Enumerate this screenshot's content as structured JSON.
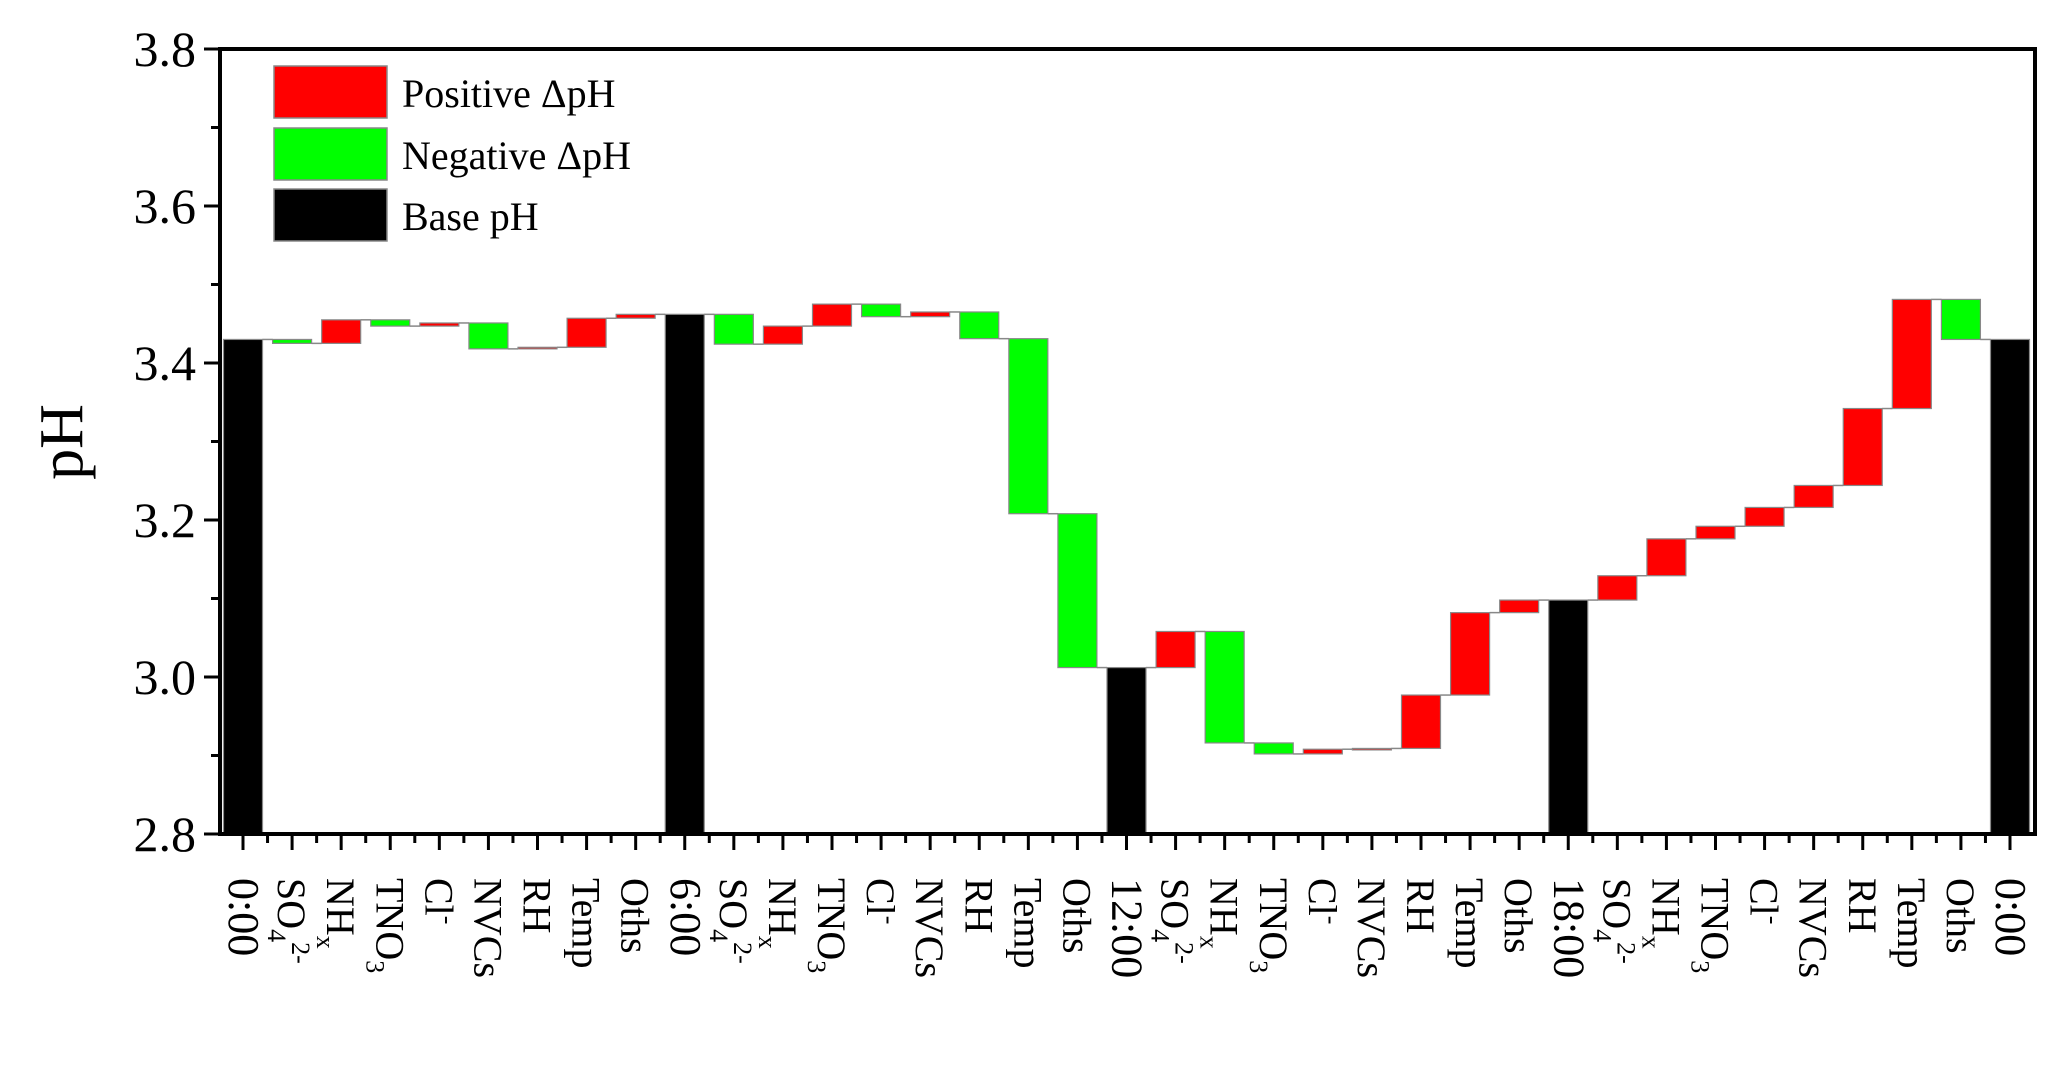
{
  "chart_data": {
    "type": "waterfall",
    "title": "",
    "xlabel": "",
    "ylabel": "pH",
    "ylim": [
      2.8,
      3.8
    ],
    "yticks": [
      "2.8",
      "3.0",
      "3.2",
      "3.4",
      "3.6",
      "3.8"
    ],
    "legend": {
      "placement": "top-left",
      "entries": [
        {
          "label": "Positive ΔpH",
          "color": "#ff0000"
        },
        {
          "label": "Negative ΔpH",
          "color": "#00ff00"
        },
        {
          "label": "Base pH",
          "color": "#000000"
        }
      ]
    },
    "colors": {
      "positive": "#ff0000",
      "negative": "#00ff00",
      "base": "#000000",
      "base_label": "#ff0000",
      "connector": "#888888"
    },
    "categories": [
      {
        "label": "0:00",
        "type": "base",
        "value": 3.43
      },
      {
        "label": "SO",
        "sub": "4",
        "sup": "2-",
        "type": "delta",
        "value": -0.005
      },
      {
        "label": "NH",
        "sub": "x",
        "type": "delta",
        "value": 0.03
      },
      {
        "label": "TNO",
        "sub": "3",
        "type": "delta",
        "value": -0.008
      },
      {
        "label": "Cl",
        "sup": "-",
        "type": "delta",
        "value": 0.004
      },
      {
        "label": "NVCs",
        "type": "delta",
        "value": -0.033
      },
      {
        "label": "RH",
        "type": "delta",
        "value": 0.002
      },
      {
        "label": "Temp",
        "type": "delta",
        "value": 0.037
      },
      {
        "label": "Oths",
        "type": "delta",
        "value": 0.005
      },
      {
        "label": "6:00",
        "type": "base",
        "value": 3.462
      },
      {
        "label": "SO",
        "sub": "4",
        "sup": "2-",
        "type": "delta",
        "value": -0.038
      },
      {
        "label": "NH",
        "sub": "x",
        "type": "delta",
        "value": 0.023
      },
      {
        "label": "TNO",
        "sub": "3",
        "type": "delta",
        "value": 0.028
      },
      {
        "label": "Cl",
        "sup": "-",
        "type": "delta",
        "value": -0.016
      },
      {
        "label": "NVCs",
        "type": "delta",
        "value": 0.006
      },
      {
        "label": "RH",
        "type": "delta",
        "value": -0.034
      },
      {
        "label": "Temp",
        "type": "delta",
        "value": -0.223
      },
      {
        "label": "Oths",
        "type": "delta",
        "value": -0.196
      },
      {
        "label": "12:00",
        "type": "base",
        "value": 3.012
      },
      {
        "label": "SO",
        "sub": "4",
        "sup": "2-",
        "type": "delta",
        "value": 0.046
      },
      {
        "label": "NH",
        "sub": "x",
        "type": "delta",
        "value": -0.142
      },
      {
        "label": "TNO",
        "sub": "3",
        "type": "delta",
        "value": -0.014
      },
      {
        "label": "Cl",
        "sup": "-",
        "type": "delta",
        "value": 0.006
      },
      {
        "label": "NVCs",
        "type": "delta",
        "value": 0.001
      },
      {
        "label": "RH",
        "type": "delta",
        "value": 0.068
      },
      {
        "label": "Temp",
        "type": "delta",
        "value": 0.105
      },
      {
        "label": "Oths",
        "type": "delta",
        "value": 0.016
      },
      {
        "label": "18:00",
        "type": "base",
        "value": 3.098
      },
      {
        "label": "SO",
        "sub": "4",
        "sup": "2-",
        "type": "delta",
        "value": 0.031
      },
      {
        "label": "NH",
        "sub": "x",
        "type": "delta",
        "value": 0.047
      },
      {
        "label": "TNO",
        "sub": "3",
        "type": "delta",
        "value": 0.016
      },
      {
        "label": "Cl",
        "sup": "-",
        "type": "delta",
        "value": 0.024
      },
      {
        "label": "NVCs",
        "type": "delta",
        "value": 0.028
      },
      {
        "label": "RH",
        "type": "delta",
        "value": 0.098
      },
      {
        "label": "Temp",
        "type": "delta",
        "value": 0.139
      },
      {
        "label": "Oths",
        "type": "delta",
        "value": -0.051
      },
      {
        "label": "0:00",
        "type": "base",
        "value": 3.43
      }
    ]
  }
}
